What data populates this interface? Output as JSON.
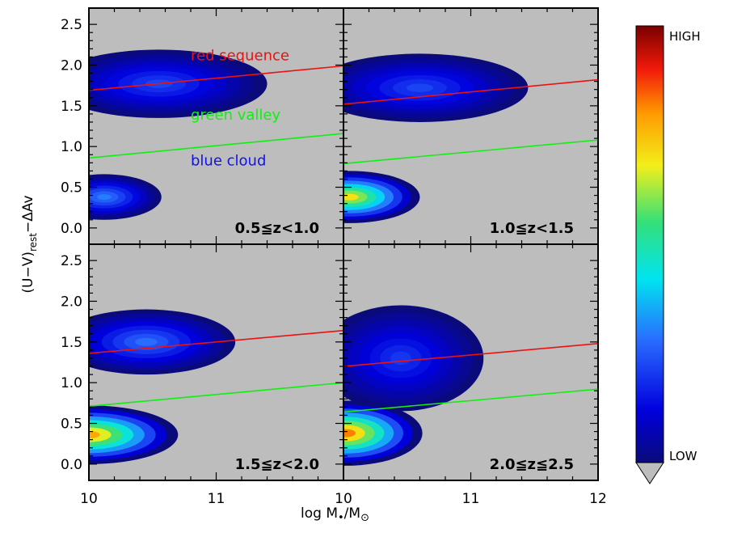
{
  "chart_data": {
    "type": "heatmap",
    "xlabel": "log M•/M⊙",
    "ylabel": "(U−V)rest−ΔAv",
    "ylabel_parts": {
      "main": "(U−V)",
      "sub": "rest",
      "tail": "−ΔAv"
    },
    "xlabel_parts": {
      "main": "log M",
      "sub": "•",
      "tail": "/M",
      "sub2": "⊙"
    },
    "xlim": [
      10,
      12
    ],
    "ylim": [
      -0.2,
      2.7
    ],
    "panel_xlim": [
      10,
      12
    ],
    "bottom_xticks": [
      "10",
      "11",
      "10",
      "11",
      "12"
    ],
    "yticks": [
      "0.0",
      "0.5",
      "1.0",
      "1.5",
      "2.0",
      "2.5"
    ],
    "grid": false,
    "colorbar": {
      "high_label": "HIGH",
      "low_label": "LOW"
    },
    "line_colors": {
      "red_sequence": "#ee1111",
      "green_valley": "#11ee11",
      "blue_cloud_label": "#1111ee"
    },
    "annotations": {
      "red": "red sequence",
      "green": "green valley",
      "blue": "blue cloud"
    },
    "panels": [
      {
        "label": "0.5≦z<1.0",
        "red_line": {
          "x": [
            10,
            12
          ],
          "y": [
            1.69,
            1.99
          ]
        },
        "green_line": {
          "x": [
            10,
            12
          ],
          "y": [
            0.86,
            1.16
          ]
        },
        "blobs": [
          {
            "cx": 10.55,
            "cy": 1.77,
            "rx": 0.85,
            "ry": 0.42,
            "peak": 0.22
          },
          {
            "cx": 10.12,
            "cy": 0.38,
            "rx": 0.45,
            "ry": 0.28,
            "peak": 0.3
          }
        ]
      },
      {
        "label": "1.0≦z<1.5",
        "red_line": {
          "x": [
            10,
            12
          ],
          "y": [
            1.52,
            1.82
          ]
        },
        "green_line": {
          "x": [
            10,
            12
          ],
          "y": [
            0.79,
            1.08
          ]
        },
        "blobs": [
          {
            "cx": 10.6,
            "cy": 1.72,
            "rx": 0.85,
            "ry": 0.42,
            "peak": 0.22
          },
          {
            "cx": 10.05,
            "cy": 0.38,
            "rx": 0.55,
            "ry": 0.32,
            "peak": 0.7
          }
        ]
      },
      {
        "label": "1.5≦z<2.0",
        "red_line": {
          "x": [
            10,
            12
          ],
          "y": [
            1.36,
            1.64
          ]
        },
        "green_line": {
          "x": [
            10,
            12
          ],
          "y": [
            0.71,
            1.0
          ]
        },
        "blobs": [
          {
            "cx": 10.45,
            "cy": 1.5,
            "rx": 0.7,
            "ry": 0.4,
            "peak": 0.28
          },
          {
            "cx": 10.0,
            "cy": 0.36,
            "rx": 0.7,
            "ry": 0.36,
            "peak": 0.78
          }
        ]
      },
      {
        "label": "2.0≦z≦2.5",
        "red_line": {
          "x": [
            10,
            12
          ],
          "y": [
            1.2,
            1.48
          ]
        },
        "green_line": {
          "x": [
            10,
            12
          ],
          "y": [
            0.64,
            0.92
          ]
        },
        "blobs": [
          {
            "cx": 10.45,
            "cy": 1.3,
            "rx": 0.65,
            "ry": 0.65,
            "peak": 0.2
          },
          {
            "cx": 10.02,
            "cy": 0.38,
            "rx": 0.6,
            "ry": 0.4,
            "peak": 0.82
          }
        ]
      }
    ]
  }
}
